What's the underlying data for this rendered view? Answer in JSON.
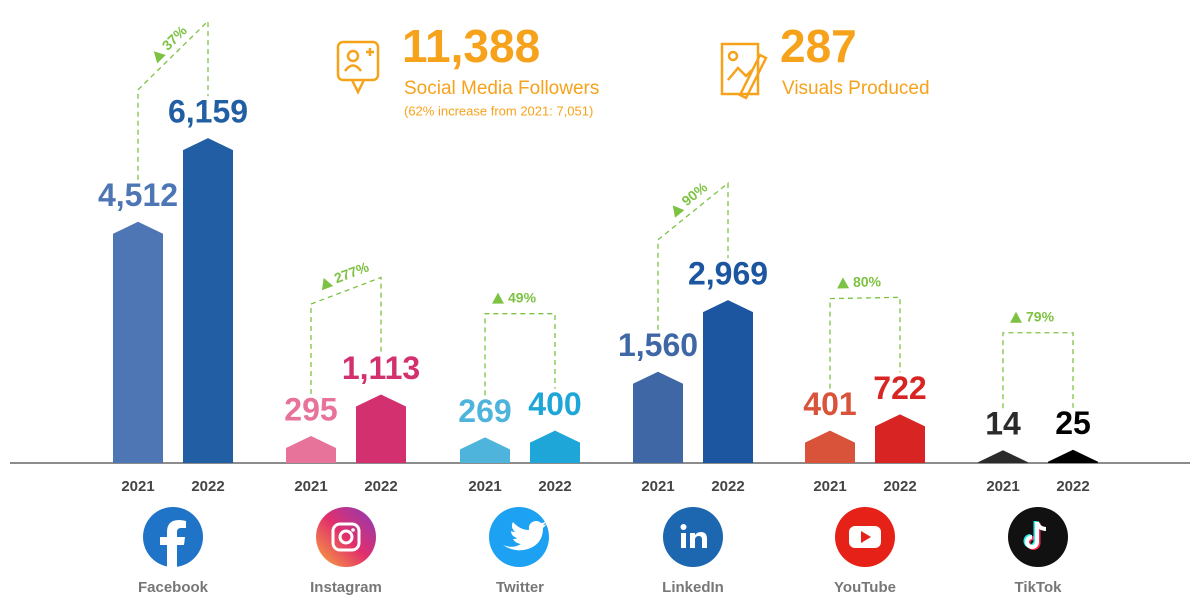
{
  "summary": [
    {
      "value": "11,388",
      "label": "Social Media Followers",
      "note": "(62% increase from 2021: 7,051)"
    },
    {
      "value": "287",
      "label": "Visuals Produced"
    }
  ],
  "chart_data": {
    "type": "bar",
    "categories": [
      "Facebook",
      "Instagram",
      "Twitter",
      "LinkedIn",
      "YouTube",
      "TikTok"
    ],
    "series": [
      {
        "name": "2021",
        "colors": [
          "#4f76b4",
          "#e8739a",
          "#4fb4dc",
          "#3f67a6",
          "#d9533a",
          "#2b2b2b"
        ],
        "values": [
          4512,
          295,
          269,
          1560,
          401,
          14
        ],
        "value_labels": [
          "4,512",
          "295",
          "269",
          "1,560",
          "401",
          "14"
        ]
      },
      {
        "name": "2022",
        "colors": [
          "#215ea3",
          "#d2306e",
          "#1fa6d8",
          "#1d56a0",
          "#d92424",
          "#000000"
        ],
        "values": [
          6159,
          1113,
          400,
          2969,
          722,
          25
        ],
        "value_labels": [
          "6,159",
          "1,113",
          "400",
          "2,969",
          "722",
          "25"
        ]
      }
    ],
    "changes": {
      "color": "#7dc242",
      "values": [
        37,
        277,
        49,
        90,
        80,
        79
      ],
      "value_labels": [
        "37%",
        "277%",
        "49%",
        "90%",
        "80%",
        "79%"
      ]
    }
  }
}
